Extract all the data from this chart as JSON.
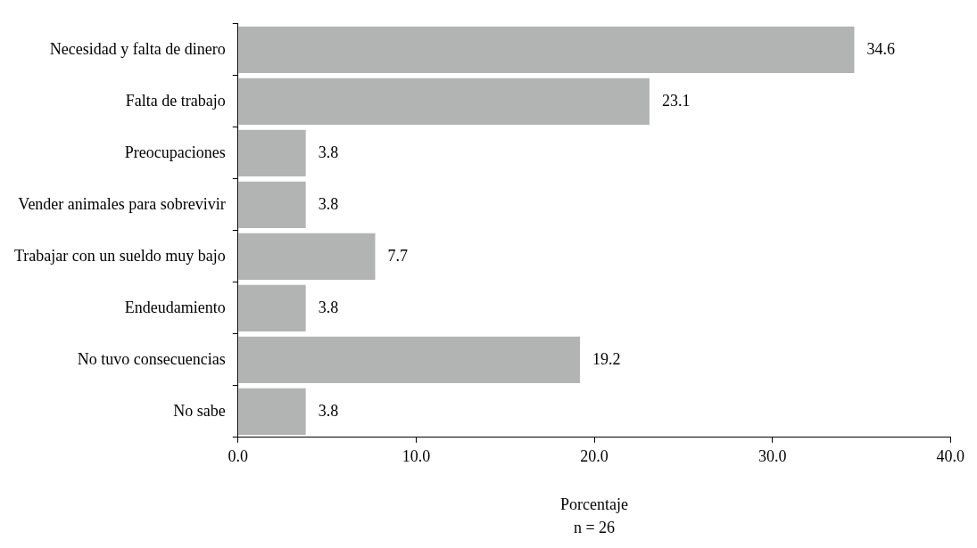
{
  "chart_data": {
    "type": "bar",
    "orientation": "horizontal",
    "categories": [
      "Necesidad y falta de dinero",
      "Falta de trabajo",
      "Preocupaciones",
      "Vender animales para sobrevivir",
      "Trabajar con un sueldo muy bajo",
      "Endeudamiento",
      "No tuvo consecuencias",
      "No sabe"
    ],
    "values": [
      34.6,
      23.1,
      3.8,
      3.8,
      7.7,
      3.8,
      19.2,
      3.8
    ],
    "color": "#b2b4b4",
    "xlim": [
      0,
      40
    ],
    "xticks": [
      {
        "value": 0,
        "label": "0.0"
      },
      {
        "value": 10,
        "label": "10.0"
      },
      {
        "value": 20,
        "label": "20.0"
      },
      {
        "value": 30,
        "label": "30.0"
      },
      {
        "value": 40,
        "label": "40.0"
      }
    ],
    "xlabel": "Porcentaje",
    "annotations": [
      "n = 26"
    ],
    "data_labels": true,
    "grid": false,
    "legend": false
  }
}
